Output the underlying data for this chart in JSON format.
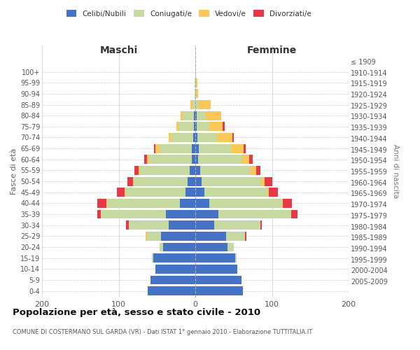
{
  "age_groups": [
    "0-4",
    "5-9",
    "10-14",
    "15-19",
    "20-24",
    "25-29",
    "30-34",
    "35-39",
    "40-44",
    "45-49",
    "50-54",
    "55-59",
    "60-64",
    "65-69",
    "70-74",
    "75-79",
    "80-84",
    "85-89",
    "90-94",
    "95-99",
    "100+"
  ],
  "birth_years": [
    "2005-2009",
    "2000-2004",
    "1995-1999",
    "1990-1994",
    "1985-1989",
    "1980-1984",
    "1975-1979",
    "1970-1974",
    "1965-1969",
    "1960-1964",
    "1955-1959",
    "1950-1954",
    "1945-1949",
    "1940-1944",
    "1935-1939",
    "1930-1934",
    "1925-1929",
    "1920-1924",
    "1915-1919",
    "1910-1914",
    "≤ 1909"
  ],
  "males": {
    "celibi": [
      62,
      58,
      52,
      55,
      42,
      45,
      35,
      38,
      20,
      13,
      10,
      7,
      5,
      5,
      3,
      2,
      2,
      0,
      0,
      0,
      0
    ],
    "coniugati": [
      0,
      0,
      0,
      2,
      5,
      18,
      52,
      85,
      95,
      78,
      70,
      65,
      55,
      42,
      28,
      20,
      14,
      4,
      1,
      1,
      0
    ],
    "vedovi": [
      0,
      0,
      0,
      0,
      0,
      2,
      0,
      0,
      1,
      1,
      1,
      2,
      3,
      5,
      4,
      3,
      3,
      2,
      0,
      0,
      0
    ],
    "divorziati": [
      0,
      0,
      0,
      0,
      0,
      0,
      3,
      5,
      12,
      10,
      8,
      5,
      4,
      2,
      0,
      0,
      0,
      0,
      0,
      0,
      0
    ]
  },
  "females": {
    "nubili": [
      62,
      60,
      55,
      52,
      42,
      40,
      25,
      30,
      18,
      12,
      8,
      6,
      4,
      5,
      3,
      2,
      2,
      0,
      0,
      0,
      0
    ],
    "coniugate": [
      0,
      0,
      0,
      2,
      8,
      25,
      60,
      95,
      95,
      82,
      78,
      65,
      56,
      42,
      25,
      16,
      12,
      5,
      1,
      1,
      0
    ],
    "vedove": [
      0,
      0,
      0,
      0,
      0,
      0,
      0,
      0,
      1,
      2,
      4,
      8,
      10,
      16,
      20,
      18,
      20,
      15,
      3,
      2,
      0
    ],
    "divorziate": [
      0,
      0,
      0,
      0,
      0,
      2,
      2,
      8,
      12,
      12,
      10,
      6,
      5,
      3,
      2,
      2,
      0,
      0,
      0,
      0,
      0
    ]
  },
  "colors": {
    "celibi": "#4472C4",
    "coniugati": "#C5D9A0",
    "vedovi": "#FAC858",
    "divorziati": "#E63946"
  },
  "legend_labels": [
    "Celibi/Nubili",
    "Coniugati/e",
    "Vedovi/e",
    "Divorziati/e"
  ],
  "title": "Popolazione per età, sesso e stato civile - 2010",
  "subtitle": "COMUNE DI COSTERMANO SUL GARDA (VR) - Dati ISTAT 1° gennaio 2010 - Elaborazione TUTTITALIA.IT",
  "xlabel_left": "Maschi",
  "xlabel_right": "Femmine",
  "ylabel_left": "Fasce di età",
  "ylabel_right": "Anni di nascita",
  "xlim": 200,
  "background": "#ffffff",
  "grid_color": "#cccccc"
}
